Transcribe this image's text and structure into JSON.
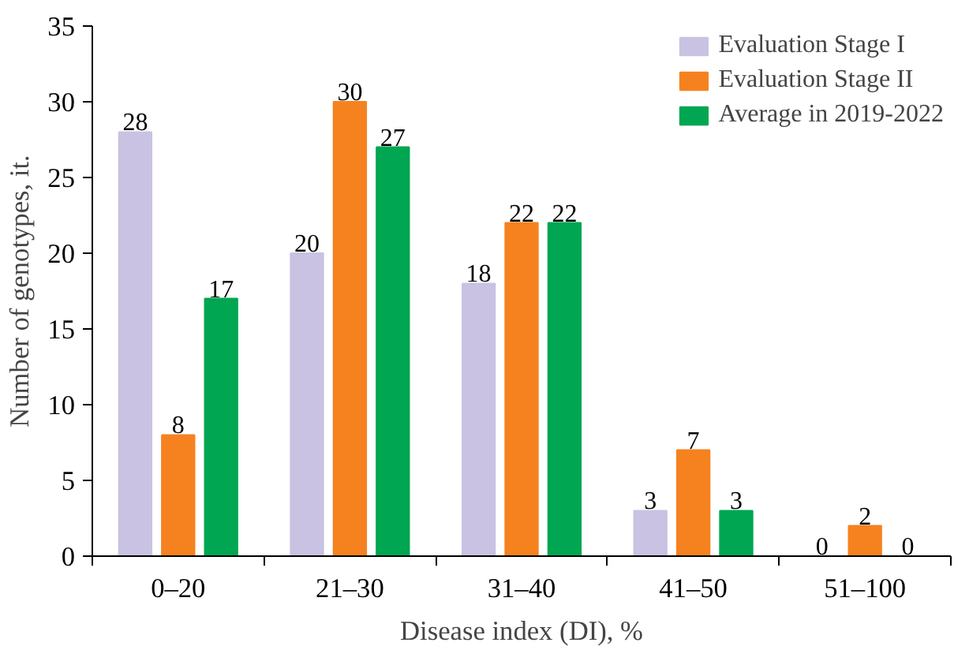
{
  "chart_data": {
    "type": "bar",
    "xlabel": "Disease index (DI), %",
    "ylabel": "Number of genotypes, it.",
    "categories": [
      "0–20",
      "21–30",
      "31–40",
      "41–50",
      "51–100"
    ],
    "series": [
      {
        "name": "Evaluation Stage I",
        "color": "#c9c2e2",
        "values": [
          28,
          20,
          18,
          3,
          0
        ]
      },
      {
        "name": "Evaluation Stage II",
        "color": "#f5821f",
        "values": [
          8,
          30,
          22,
          7,
          2
        ]
      },
      {
        "name": "Average in 2019-2022",
        "color": "#00a651",
        "values": [
          17,
          27,
          22,
          3,
          0
        ]
      }
    ],
    "ylim": [
      0,
      35
    ],
    "yticks": [
      0,
      5,
      10,
      15,
      20,
      25,
      30,
      35
    ],
    "data_labels": true,
    "legend": "top right",
    "grid": false
  }
}
